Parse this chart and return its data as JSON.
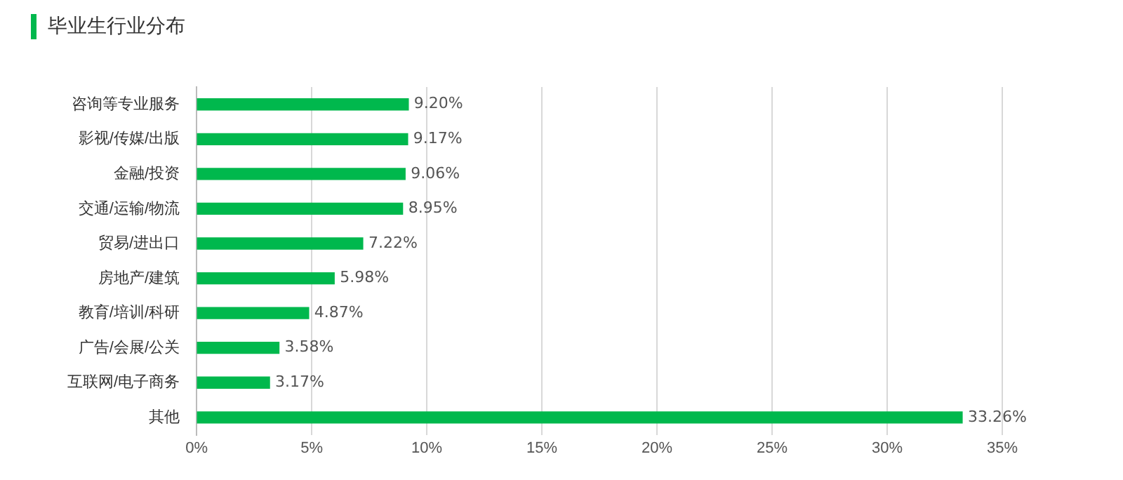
{
  "chart_data": {
    "type": "bar",
    "orientation": "horizontal",
    "title": "毕业生行业分布",
    "categories": [
      "咨询等专业服务",
      "影视/传媒/出版",
      "金融/投资",
      "交通/运输/物流",
      "贸易/进出口",
      "房地产/建筑",
      "教育/培训/科研",
      "广告/会展/公关",
      "互联网/电子商务",
      "其他"
    ],
    "values": [
      9.2,
      9.17,
      9.06,
      8.95,
      7.22,
      5.98,
      4.87,
      3.58,
      3.17,
      33.26
    ],
    "value_labels": [
      "9.20%",
      "9.17%",
      "9.06%",
      "8.95%",
      "7.22%",
      "5.98%",
      "4.87%",
      "3.58%",
      "3.17%",
      "33.26%"
    ],
    "color": "#00b84d",
    "xlim": [
      0,
      35
    ],
    "xticks": [
      {
        "value": 0,
        "label": "0%"
      },
      {
        "value": 5,
        "label": "5%"
      },
      {
        "value": 10,
        "label": "10%"
      },
      {
        "value": 15,
        "label": "15%"
      },
      {
        "value": 20,
        "label": "20%"
      },
      {
        "value": 25,
        "label": "25%"
      },
      {
        "value": 30,
        "label": "30%"
      },
      {
        "value": 35,
        "label": "35%"
      }
    ],
    "grid": "x"
  }
}
